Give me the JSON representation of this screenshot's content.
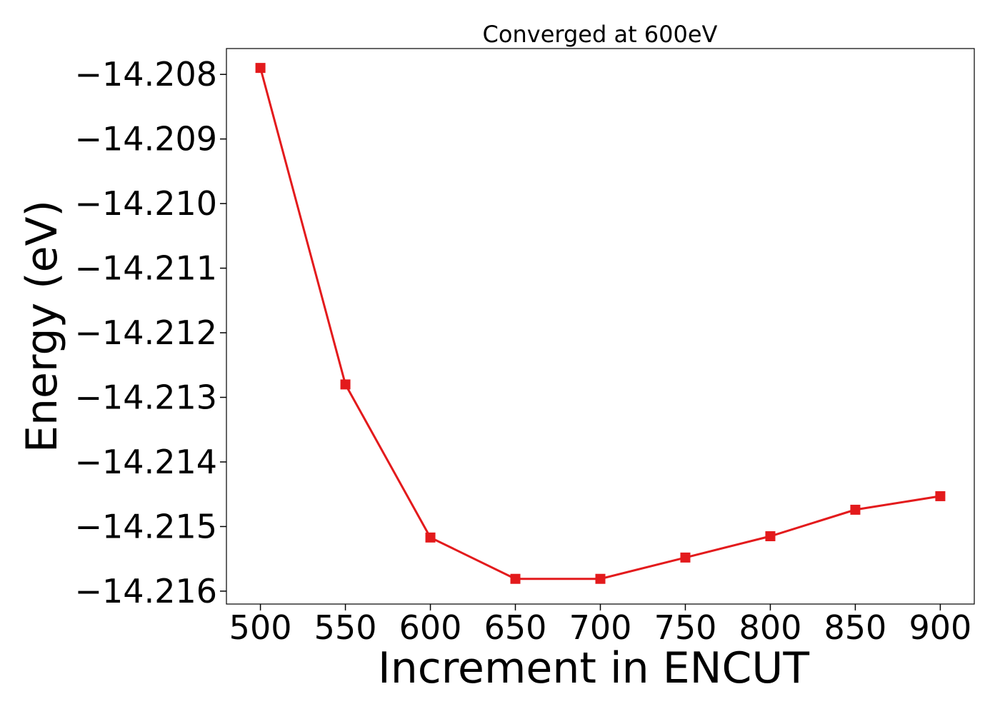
{
  "chart_data": {
    "type": "line",
    "title": "Converged at 600eV",
    "xlabel": "Increment in ENCUT",
    "ylabel": "Energy (eV)",
    "x": [
      500,
      550,
      600,
      650,
      700,
      750,
      800,
      850,
      900
    ],
    "series": [
      {
        "values": [
          -14.2079,
          -14.2128,
          -14.21517,
          -14.21581,
          -14.21581,
          -14.21548,
          -14.21515,
          -14.21474,
          -14.21453
        ],
        "color": "#e31a1c",
        "marker": "square"
      }
    ],
    "xticks": [
      500,
      550,
      600,
      650,
      700,
      750,
      800,
      850,
      900
    ],
    "xtick_labels": [
      "500",
      "550",
      "600",
      "650",
      "700",
      "750",
      "800",
      "850",
      "900"
    ],
    "yticks": [
      -14.208,
      -14.209,
      -14.21,
      -14.211,
      -14.212,
      -14.213,
      -14.214,
      -14.215,
      -14.216
    ],
    "ytick_labels": [
      "−14.208",
      "−14.209",
      "−14.210",
      "−14.211",
      "−14.212",
      "−14.213",
      "−14.214",
      "−14.215",
      "−14.216"
    ],
    "xlim": [
      480,
      920
    ],
    "ylim": [
      -14.2162,
      -14.2076
    ],
    "grid": false,
    "legend": "none"
  }
}
